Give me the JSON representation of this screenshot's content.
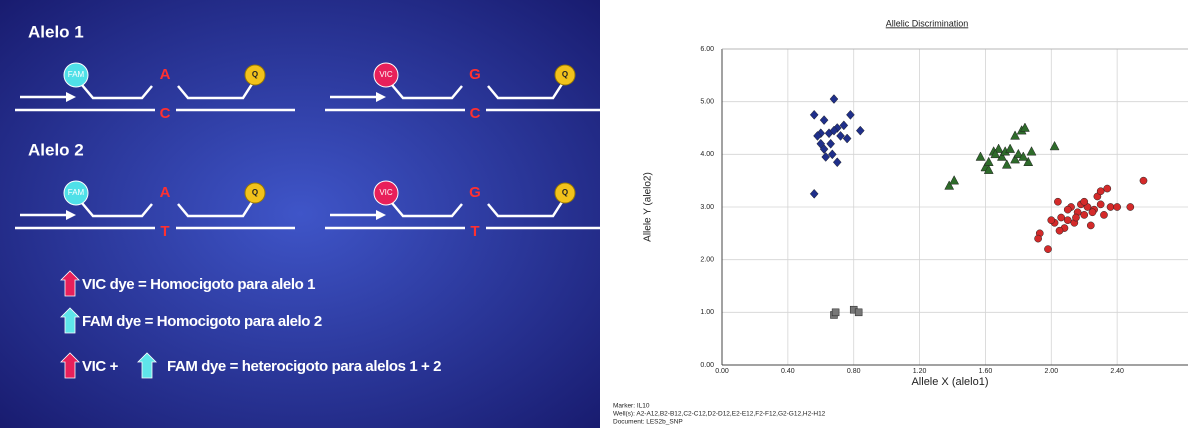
{
  "slide": {
    "sections": [
      {
        "title": "Alelo 1",
        "panels": [
          {
            "dye": "FAM",
            "quencher": "Q",
            "probe_base": "A",
            "target_base": "C"
          },
          {
            "dye": "VIC",
            "quencher": "Q",
            "probe_base": "G",
            "target_base": "C"
          }
        ]
      },
      {
        "title": "Alelo 2",
        "panels": [
          {
            "dye": "FAM",
            "quencher": "Q",
            "probe_base": "A",
            "target_base": "T"
          },
          {
            "dye": "VIC",
            "quencher": "Q",
            "probe_base": "G",
            "target_base": "T"
          }
        ]
      }
    ],
    "legend": [
      "VIC dye = Homocigoto para alelo 1",
      "FAM dye = Homocigoto para alelo 2"
    ],
    "legend_combined": {
      "first": "VIC +",
      "second": "FAM dye = heterocigoto para alelos 1 + 2"
    }
  },
  "chart_data": {
    "type": "scatter",
    "title": "Allelic Discrimination",
    "x_label": "Allele X (alelo1)",
    "y_label": "Allele Y (alelo2)",
    "xlim": [
      0,
      2.8
    ],
    "ylim": [
      0,
      6
    ],
    "grid": true,
    "xticks": [
      {
        "value": 0,
        "label": "0.00"
      },
      {
        "value": 0.4,
        "label": "0.40"
      },
      {
        "value": 0.8,
        "label": "0.80"
      },
      {
        "value": 1.2,
        "label": "1.20"
      },
      {
        "value": 1.6,
        "label": "1.60"
      },
      {
        "value": 2.0,
        "label": "2.00"
      },
      {
        "value": 2.4,
        "label": "2.40"
      }
    ],
    "yticks": [
      {
        "value": 0,
        "label": "0.00"
      },
      {
        "value": 1,
        "label": "1.00"
      },
      {
        "value": 2,
        "label": "2.00"
      },
      {
        "value": 3,
        "label": "3.00"
      },
      {
        "value": 4,
        "label": "4.00"
      },
      {
        "value": 5,
        "label": "5.00"
      },
      {
        "value": 6,
        "label": "6.00"
      }
    ],
    "series": [
      {
        "color": "#1f2f8a",
        "marker": "diamond",
        "x": [
          0.56,
          0.68,
          0.62,
          0.78,
          0.74,
          0.6,
          0.65,
          0.7,
          0.84,
          0.62,
          0.67,
          0.63,
          0.7,
          0.58,
          0.56,
          0.72,
          0.66,
          0.76,
          0.6,
          0.68
        ],
        "values": [
          4.75,
          5.05,
          4.65,
          4.75,
          4.55,
          4.4,
          4.4,
          4.5,
          4.45,
          4.1,
          4.0,
          3.95,
          3.85,
          4.35,
          3.25,
          4.35,
          4.2,
          4.3,
          4.2,
          4.45
        ]
      },
      {
        "color": "#2e6b2a",
        "marker": "triangle",
        "x": [
          1.38,
          1.41,
          1.57,
          1.6,
          1.62,
          1.65,
          1.68,
          1.7,
          1.72,
          1.75,
          1.78,
          1.8,
          1.82,
          1.84,
          1.86,
          1.88,
          1.78,
          1.83,
          2.02,
          1.66,
          1.73,
          1.62
        ],
        "values": [
          3.4,
          3.5,
          3.95,
          3.75,
          3.85,
          4.05,
          4.1,
          3.95,
          4.05,
          4.1,
          3.9,
          4.0,
          4.45,
          4.5,
          3.85,
          4.05,
          4.35,
          3.95,
          4.15,
          4.0,
          3.8,
          3.7
        ]
      },
      {
        "color": "#d42a2a",
        "marker": "circle",
        "x": [
          1.93,
          1.98,
          2.02,
          2.04,
          2.06,
          2.08,
          2.1,
          2.12,
          2.14,
          2.16,
          2.18,
          2.2,
          2.22,
          2.24,
          2.26,
          2.28,
          2.3,
          2.32,
          2.34,
          2.36,
          2.4,
          2.48,
          2.56,
          2.05,
          2.1,
          2.15,
          2.2,
          2.25,
          2.3,
          1.92,
          2.0
        ],
        "values": [
          2.5,
          2.2,
          2.7,
          3.1,
          2.8,
          2.6,
          2.75,
          3.0,
          2.7,
          2.9,
          3.05,
          2.85,
          3.0,
          2.65,
          2.95,
          3.2,
          3.3,
          2.85,
          3.35,
          3.0,
          3.0,
          3.0,
          3.5,
          2.55,
          2.95,
          2.8,
          3.1,
          2.9,
          3.05,
          2.4,
          2.75
        ]
      },
      {
        "color": "#777777",
        "marker": "square",
        "x": [
          0.68,
          0.69,
          0.8,
          0.83
        ],
        "values": [
          0.95,
          1.0,
          1.05,
          1.0
        ]
      }
    ],
    "footer": [
      "Marker: IL10",
      "Well(s): A2-A12,B2-B12,C2-C12,D2-D12,E2-E12,F2-F12,G2-G12,H2-H12",
      "Document: LES2b_SNP"
    ]
  }
}
